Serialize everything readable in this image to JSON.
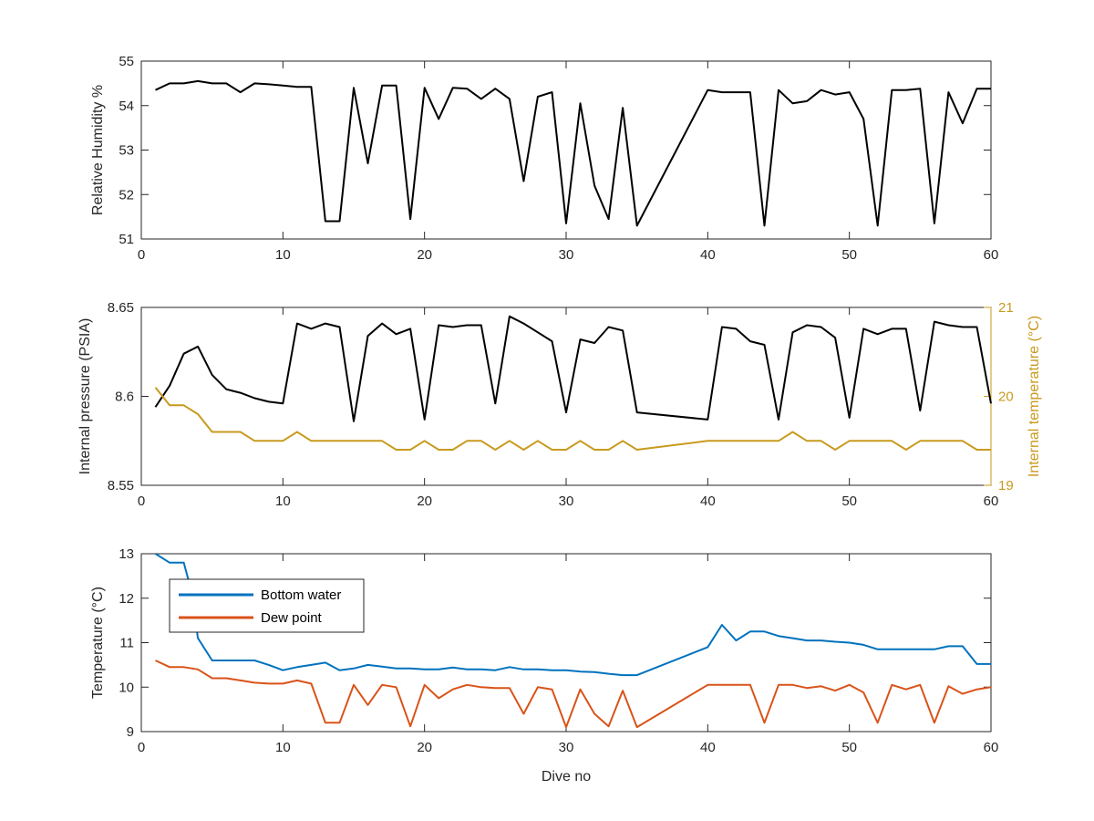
{
  "chart_data": [
    {
      "type": "line",
      "ylabel": "Relative Humidity %",
      "xlim": [
        0,
        60
      ],
      "ylim": [
        51,
        55
      ],
      "xticks": [
        "0",
        "10",
        "20",
        "30",
        "40",
        "50",
        "60"
      ],
      "yticks": [
        "51",
        "52",
        "53",
        "54",
        "55"
      ],
      "series": [
        {
          "color": "#000000",
          "x": [
            1,
            2,
            3,
            4,
            5,
            6,
            7,
            8,
            9,
            10,
            11,
            12,
            13,
            14,
            15,
            16,
            17,
            18,
            19,
            20,
            21,
            22,
            23,
            24,
            25,
            26,
            27,
            28,
            29,
            30,
            31,
            32,
            33,
            34,
            35,
            40,
            41,
            42,
            43,
            44,
            45,
            46,
            47,
            48,
            49,
            50,
            51,
            52,
            53,
            54,
            55,
            56,
            57,
            58,
            59,
            60
          ],
          "y": [
            54.35,
            54.5,
            54.5,
            54.55,
            54.5,
            54.5,
            54.3,
            54.5,
            54.48,
            54.45,
            54.42,
            54.42,
            51.4,
            51.4,
            54.4,
            52.7,
            54.45,
            54.45,
            51.45,
            54.4,
            53.7,
            54.4,
            54.38,
            54.15,
            54.38,
            54.15,
            52.3,
            54.2,
            54.3,
            51.35,
            54.05,
            52.2,
            51.45,
            53.95,
            51.3,
            54.35,
            54.3,
            54.3,
            54.3,
            51.3,
            54.35,
            54.05,
            54.1,
            54.35,
            54.25,
            54.3,
            53.7,
            51.3,
            54.35,
            54.35,
            54.38,
            51.35,
            54.3,
            53.6,
            54.38,
            54.38
          ]
        }
      ]
    },
    {
      "type": "line",
      "ylabel": "Internal pressure (PSIA)",
      "y2label": "Internal temperature (°C)",
      "xlim": [
        0,
        60
      ],
      "ylim": [
        8.55,
        8.65
      ],
      "y2lim": [
        19,
        21
      ],
      "xticks": [
        "0",
        "10",
        "20",
        "30",
        "40",
        "50",
        "60"
      ],
      "yticks": [
        "8.55",
        "8.6",
        "8.65"
      ],
      "y2ticks": [
        "19",
        "20",
        "21"
      ],
      "series": [
        {
          "axis": "left",
          "color": "#000000",
          "x": [
            1,
            2,
            3,
            4,
            5,
            6,
            7,
            8,
            9,
            10,
            11,
            12,
            13,
            14,
            15,
            16,
            17,
            18,
            19,
            20,
            21,
            22,
            23,
            24,
            25,
            26,
            27,
            28,
            29,
            30,
            31,
            32,
            33,
            34,
            35,
            40,
            41,
            42,
            43,
            44,
            45,
            46,
            47,
            48,
            49,
            50,
            51,
            52,
            53,
            54,
            55,
            56,
            57,
            58,
            59,
            60
          ],
          "y": [
            8.594,
            8.606,
            8.624,
            8.628,
            8.612,
            8.604,
            8.602,
            8.599,
            8.597,
            8.596,
            8.641,
            8.638,
            8.641,
            8.639,
            8.586,
            8.634,
            8.641,
            8.635,
            8.638,
            8.587,
            8.64,
            8.639,
            8.64,
            8.64,
            8.596,
            8.645,
            8.641,
            8.636,
            8.631,
            8.591,
            8.632,
            8.63,
            8.639,
            8.637,
            8.591,
            8.587,
            8.639,
            8.638,
            8.631,
            8.629,
            8.587,
            8.636,
            8.64,
            8.639,
            8.633,
            8.588,
            8.638,
            8.635,
            8.638,
            8.638,
            8.592,
            8.642,
            8.64,
            8.639,
            8.639,
            8.596
          ]
        },
        {
          "axis": "right",
          "color": "#C89A1E",
          "x": [
            1,
            2,
            3,
            4,
            5,
            6,
            7,
            8,
            9,
            10,
            11,
            12,
            13,
            14,
            15,
            16,
            17,
            18,
            19,
            20,
            21,
            22,
            23,
            24,
            25,
            26,
            27,
            28,
            29,
            30,
            31,
            32,
            33,
            34,
            35,
            40,
            41,
            42,
            43,
            44,
            45,
            46,
            47,
            48,
            49,
            50,
            51,
            52,
            53,
            54,
            55,
            56,
            57,
            58,
            59,
            60
          ],
          "y": [
            20.1,
            19.9,
            19.9,
            19.8,
            19.6,
            19.6,
            19.6,
            19.5,
            19.5,
            19.5,
            19.6,
            19.5,
            19.5,
            19.5,
            19.5,
            19.5,
            19.5,
            19.4,
            19.4,
            19.5,
            19.4,
            19.4,
            19.5,
            19.5,
            19.4,
            19.5,
            19.4,
            19.5,
            19.4,
            19.4,
            19.5,
            19.4,
            19.4,
            19.5,
            19.4,
            19.5,
            19.5,
            19.5,
            19.5,
            19.5,
            19.5,
            19.6,
            19.5,
            19.5,
            19.4,
            19.5,
            19.5,
            19.5,
            19.5,
            19.4,
            19.5,
            19.5,
            19.5,
            19.5,
            19.4,
            19.4
          ]
        }
      ]
    },
    {
      "type": "line",
      "xlabel": "Dive no",
      "ylabel": "Temperature (°C)",
      "xlim": [
        0,
        60
      ],
      "ylim": [
        9,
        13
      ],
      "xticks": [
        "0",
        "10",
        "20",
        "30",
        "40",
        "50",
        "60"
      ],
      "yticks": [
        "9",
        "10",
        "11",
        "12",
        "13"
      ],
      "legend": "top-left",
      "series": [
        {
          "name": "Bottom water",
          "color": "#0072BD",
          "x": [
            1,
            2,
            3,
            3.5,
            4,
            5,
            6,
            7,
            8,
            9,
            10,
            11,
            12,
            13,
            14,
            15,
            16,
            17,
            18,
            19,
            20,
            21,
            22,
            23,
            24,
            25,
            26,
            27,
            28,
            29,
            30,
            31,
            32,
            33,
            34,
            35,
            40,
            41,
            42,
            43,
            44,
            45,
            46,
            47,
            48,
            49,
            50,
            51,
            52,
            53,
            54,
            55,
            56,
            57,
            58,
            59,
            60
          ],
          "y": [
            13.0,
            12.8,
            12.8,
            12.2,
            11.1,
            10.6,
            10.6,
            10.6,
            10.6,
            10.5,
            10.38,
            10.45,
            10.5,
            10.55,
            10.38,
            10.42,
            10.5,
            10.46,
            10.42,
            10.42,
            10.4,
            10.4,
            10.44,
            10.4,
            10.4,
            10.38,
            10.45,
            10.4,
            10.4,
            10.38,
            10.38,
            10.35,
            10.34,
            10.3,
            10.27,
            10.27,
            10.9,
            11.4,
            11.05,
            11.25,
            11.25,
            11.15,
            11.1,
            11.05,
            11.05,
            11.02,
            11.0,
            10.95,
            10.85,
            10.85,
            10.85,
            10.85,
            10.85,
            10.92,
            10.92,
            10.52,
            10.52
          ]
        },
        {
          "name": "Dew point",
          "color": "#D95319",
          "x": [
            1,
            2,
            3,
            4,
            5,
            6,
            7,
            8,
            9,
            10,
            11,
            12,
            13,
            14,
            15,
            16,
            17,
            18,
            19,
            20,
            21,
            22,
            23,
            24,
            25,
            26,
            27,
            28,
            29,
            30,
            31,
            32,
            33,
            34,
            35,
            40,
            41,
            42,
            43,
            44,
            45,
            46,
            47,
            48,
            49,
            50,
            51,
            52,
            53,
            54,
            55,
            56,
            57,
            58,
            59,
            60
          ],
          "y": [
            10.6,
            10.45,
            10.45,
            10.4,
            10.2,
            10.2,
            10.15,
            10.1,
            10.08,
            10.08,
            10.15,
            10.08,
            9.2,
            9.2,
            10.05,
            9.6,
            10.05,
            10.0,
            9.12,
            10.05,
            9.75,
            9.95,
            10.05,
            10.0,
            9.98,
            9.98,
            9.4,
            10.0,
            9.95,
            9.1,
            9.95,
            9.4,
            9.12,
            9.92,
            9.1,
            10.05,
            10.05,
            10.05,
            10.05,
            9.2,
            10.05,
            10.05,
            9.98,
            10.02,
            9.92,
            10.05,
            9.88,
            9.2,
            10.05,
            9.95,
            10.05,
            9.2,
            10.02,
            9.85,
            9.95,
            10.0
          ]
        }
      ]
    }
  ]
}
